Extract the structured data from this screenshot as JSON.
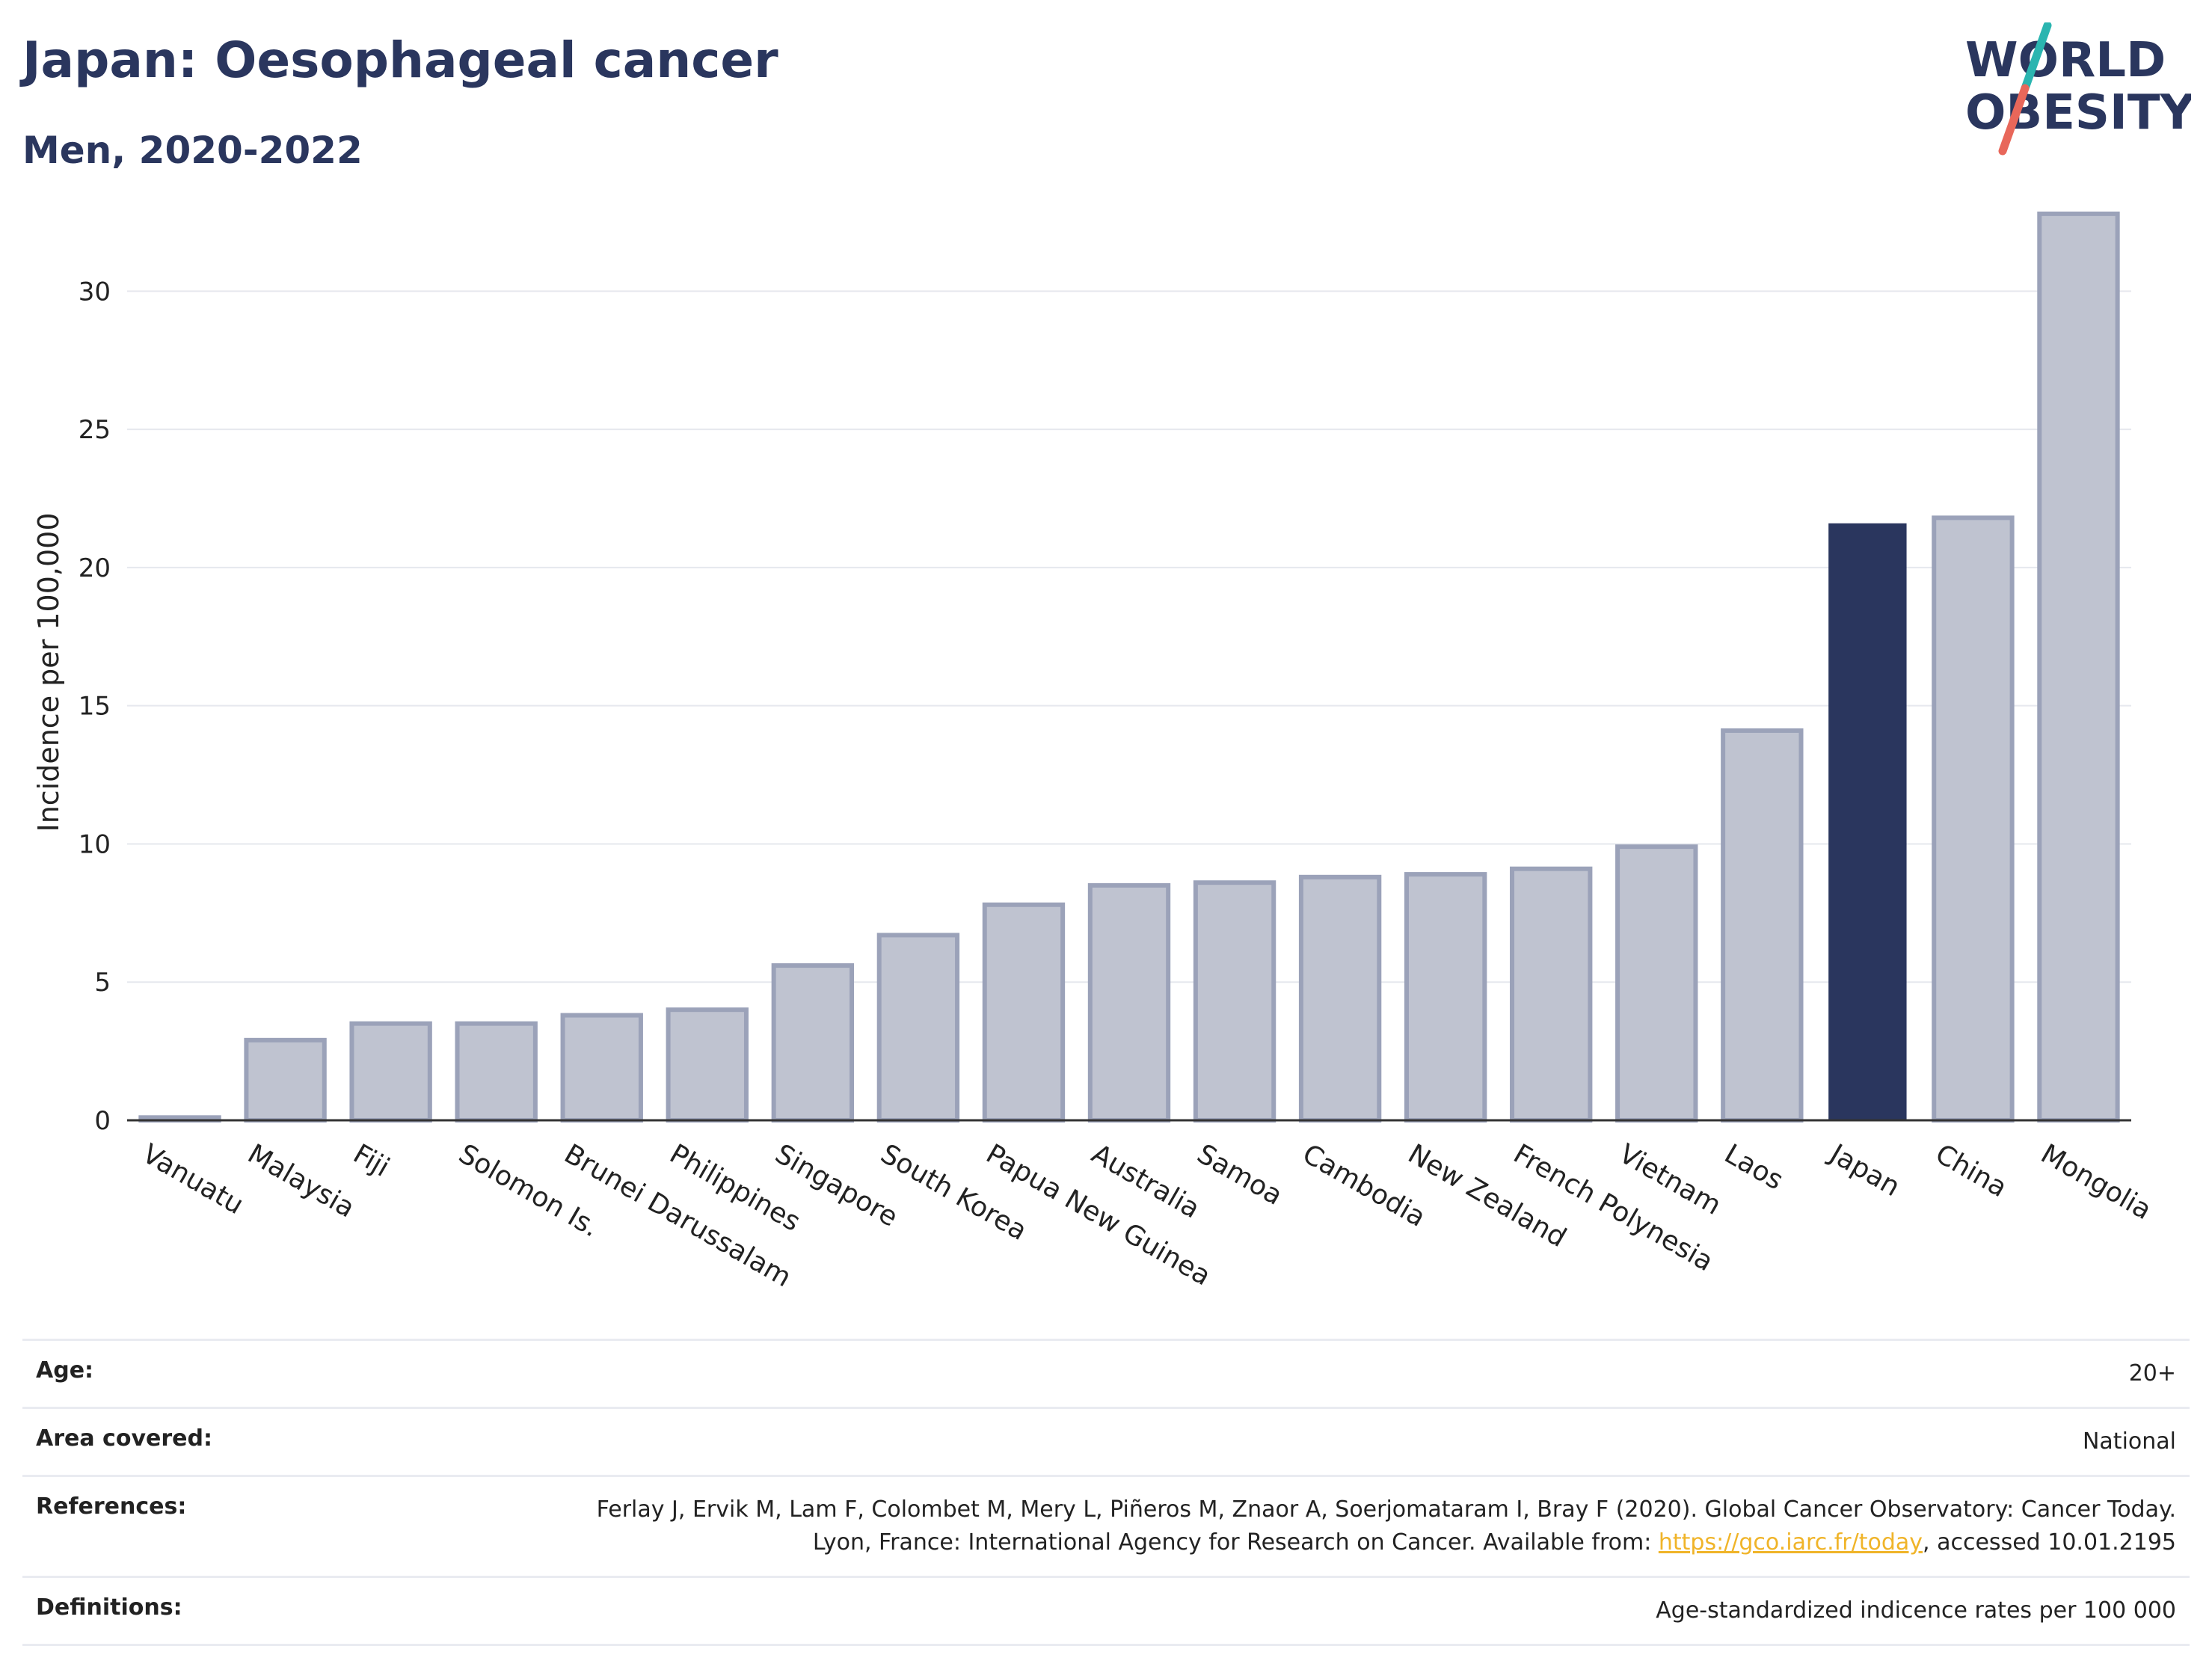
{
  "header": {
    "title": "Japan: Oesophageal cancer",
    "subtitle": "Men, 2020-2022"
  },
  "logo": {
    "line1": "WORLD",
    "line2": "OBESITY",
    "colors": {
      "text": "#2a365e",
      "slash_top": "#2bb5b0",
      "slash_bottom": "#e8675a"
    }
  },
  "chart_data": {
    "type": "bar",
    "ylabel": "Incidence per 100,000",
    "xlabel": "",
    "ylim": [
      0,
      33.5
    ],
    "yticks": [
      0,
      5,
      10,
      15,
      20,
      25,
      30
    ],
    "grid": true,
    "categories": [
      "Vanuatu",
      "Malaysia",
      "Fiji",
      "Solomon Is.",
      "Brunei Darussalam",
      "Philippines",
      "Singapore",
      "South Korea",
      "Papua New Guinea",
      "Australia",
      "Samoa",
      "Cambodia",
      "New Zealand",
      "French Polynesia",
      "Vietnam",
      "Laos",
      "Japan",
      "China",
      "Mongolia"
    ],
    "values": [
      0.1,
      2.9,
      3.5,
      3.5,
      3.8,
      4.0,
      5.6,
      6.7,
      7.8,
      8.5,
      8.6,
      8.8,
      8.9,
      9.1,
      9.9,
      14.1,
      21.6,
      21.8,
      32.8
    ],
    "highlight": "Japan",
    "colors": {
      "bar": "#bfc3d0",
      "bar_edge": "#9ba2b9",
      "highlight": "#2a365e",
      "grid": "#e6e8ee",
      "axis": "#333333"
    }
  },
  "meta": {
    "age": {
      "label": "Age:",
      "value": "20+"
    },
    "area": {
      "label": "Area covered:",
      "value": "National"
    },
    "references": {
      "label": "References:",
      "text_before": "Ferlay J, Ervik M, Lam F, Colombet M, Mery L, Piñeros M, Znaor A, Soerjomataram I, Bray F (2020). Global Cancer Observatory: Cancer Today. Lyon, France: International Agency for Research on Cancer. Available from: ",
      "link": "https://gco.iarc.fr/today",
      "text_after": ", accessed 10.01.2195"
    },
    "definitions": {
      "label": "Definitions:",
      "value": "Age-standardized indicence rates per 100 000"
    }
  }
}
